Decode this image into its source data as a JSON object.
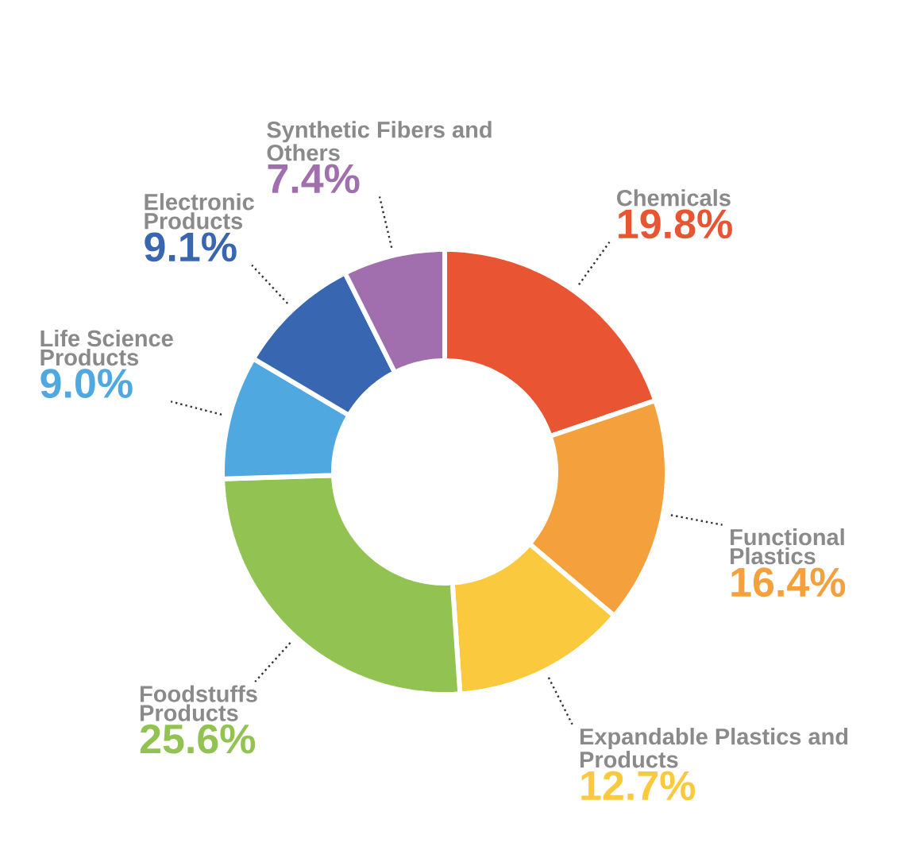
{
  "chart_data": {
    "type": "donut",
    "categories": [
      "Chemicals",
      "Functional Plastics",
      "Expandable Plastics and Products",
      "Foodstuffs Products",
      "Life Science Products",
      "Electronic Products",
      "Synthetic Fibers and Others"
    ],
    "values": [
      19.8,
      16.4,
      12.7,
      25.6,
      9.0,
      9.1,
      7.4
    ],
    "value_labels": [
      "19.8%",
      "16.4%",
      "12.7%",
      "25.6%",
      "9.0%",
      "9.1%",
      "7.4%"
    ],
    "colors": [
      "#e95532",
      "#f4a03c",
      "#fbc93d",
      "#92c352",
      "#4fa9e0",
      "#3866b0",
      "#a16fae"
    ]
  }
}
